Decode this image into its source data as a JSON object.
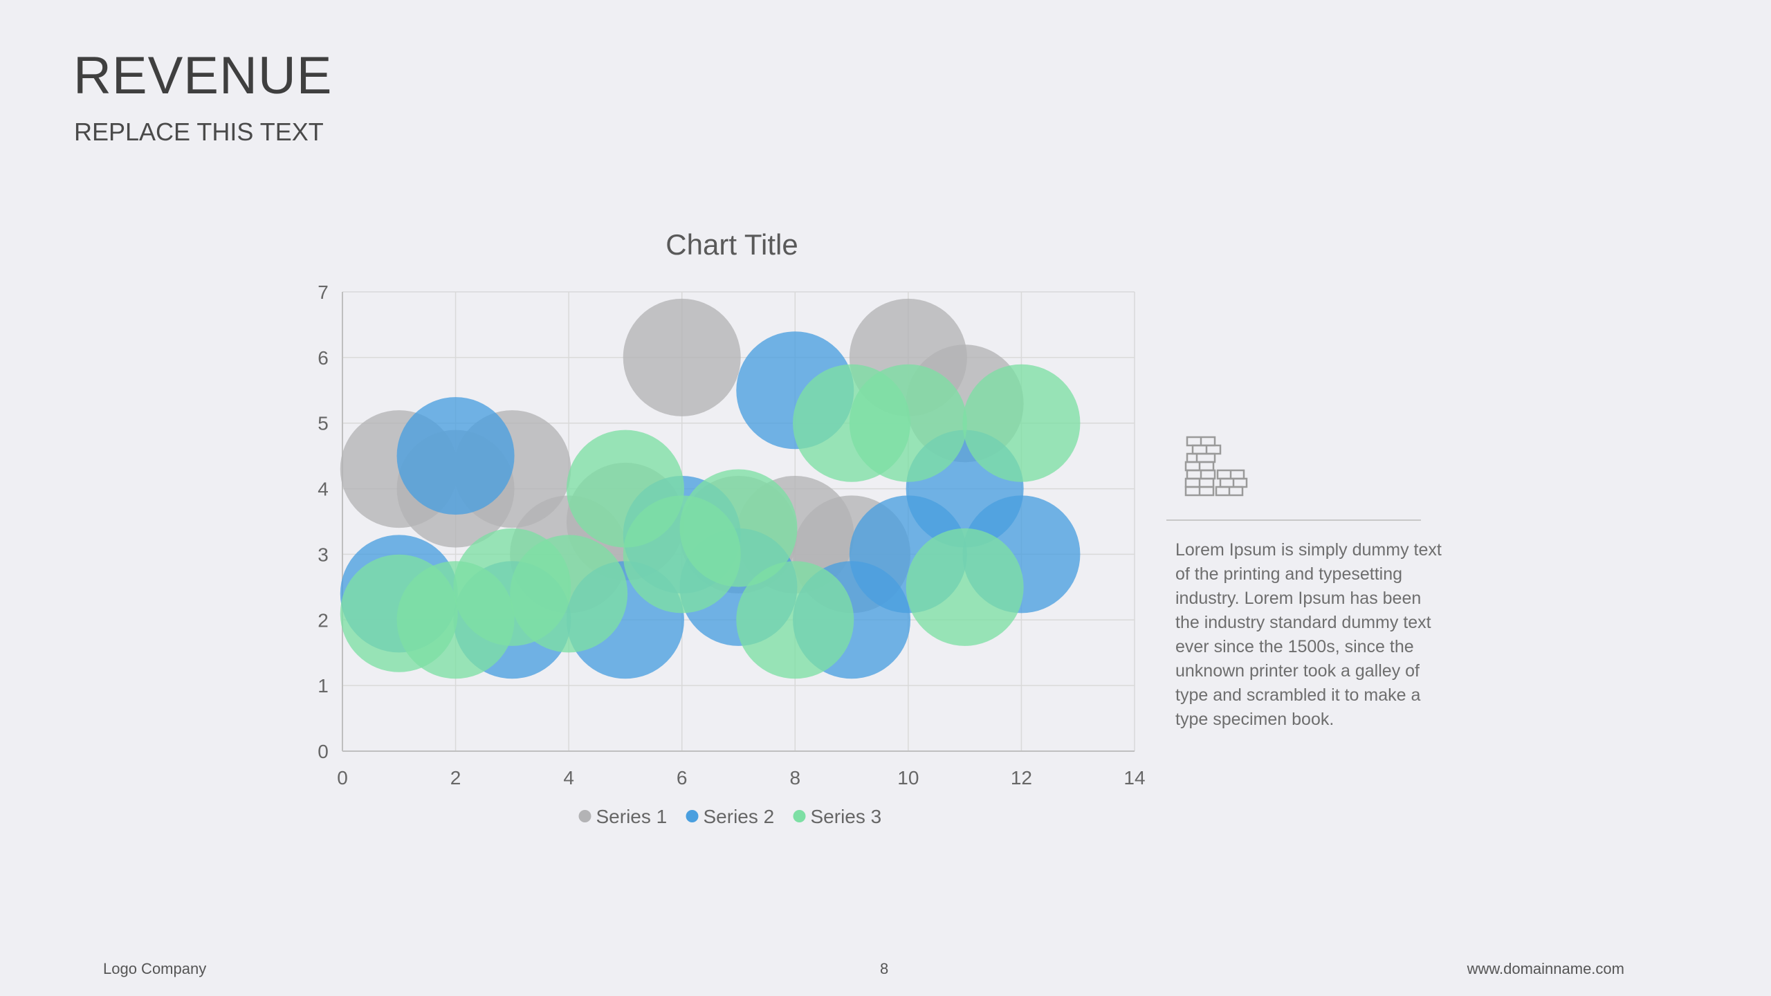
{
  "slide": {
    "title": "REVENUE",
    "subtitle": "REPLACE THIS TEXT",
    "page_number": "8"
  },
  "side_panel": {
    "icon": "bricks-icon",
    "text": "Lorem Ipsum is simply dummy text of the printing and typesetting industry. Lorem Ipsum has been the industry standard dummy text ever since the 1500s, since the unknown printer took a galley of type and scrambled it to make a type specimen book."
  },
  "footer": {
    "left": "Logo Company",
    "right": "www.domainname.com"
  },
  "colors": {
    "series1": "#b3b3b5",
    "series2": "#4a9fdf",
    "series3": "#7ddfa4",
    "grid": "#d9d9d9",
    "axis": "#bfbfbf"
  },
  "chart_data": {
    "type": "scatter",
    "subtype": "bubble",
    "title": "Chart Title",
    "xlabel": "",
    "ylabel": "",
    "xlim": [
      0,
      14
    ],
    "ylim": [
      0,
      7
    ],
    "x_ticks": [
      0,
      2,
      4,
      6,
      8,
      10,
      12,
      14
    ],
    "y_ticks": [
      0,
      1,
      2,
      3,
      4,
      5,
      6,
      7
    ],
    "grid": true,
    "legend_position": "bottom",
    "series": [
      {
        "name": "Series 1",
        "x": [
          1,
          2,
          3,
          4,
          5,
          6,
          7,
          8,
          9,
          10,
          11
        ],
        "y": [
          4.3,
          4.0,
          4.3,
          3.0,
          3.5,
          6.0,
          3.3,
          3.3,
          3.0,
          6.0,
          5.3
        ],
        "size": [
          1,
          1,
          1,
          1,
          1,
          1,
          1,
          1,
          1,
          1,
          1
        ]
      },
      {
        "name": "Series 2",
        "x": [
          1,
          2,
          3,
          5,
          6,
          7,
          8,
          9,
          10,
          11,
          12
        ],
        "y": [
          2.4,
          4.5,
          2.0,
          2.0,
          3.3,
          2.5,
          5.5,
          2.0,
          3.0,
          4.0,
          3.0
        ],
        "size": [
          1,
          1,
          1,
          1,
          1,
          1,
          1,
          1,
          1,
          1,
          1
        ]
      },
      {
        "name": "Series 3",
        "x": [
          1,
          2,
          3,
          4,
          5,
          6,
          7,
          8,
          9,
          10,
          11,
          12
        ],
        "y": [
          2.1,
          2.0,
          2.5,
          2.4,
          4.0,
          3.0,
          3.4,
          2.0,
          5.0,
          5.0,
          2.5,
          5.0
        ],
        "size": [
          1,
          1,
          1,
          1,
          1,
          1,
          1,
          1,
          1,
          1,
          1,
          1
        ]
      }
    ]
  }
}
